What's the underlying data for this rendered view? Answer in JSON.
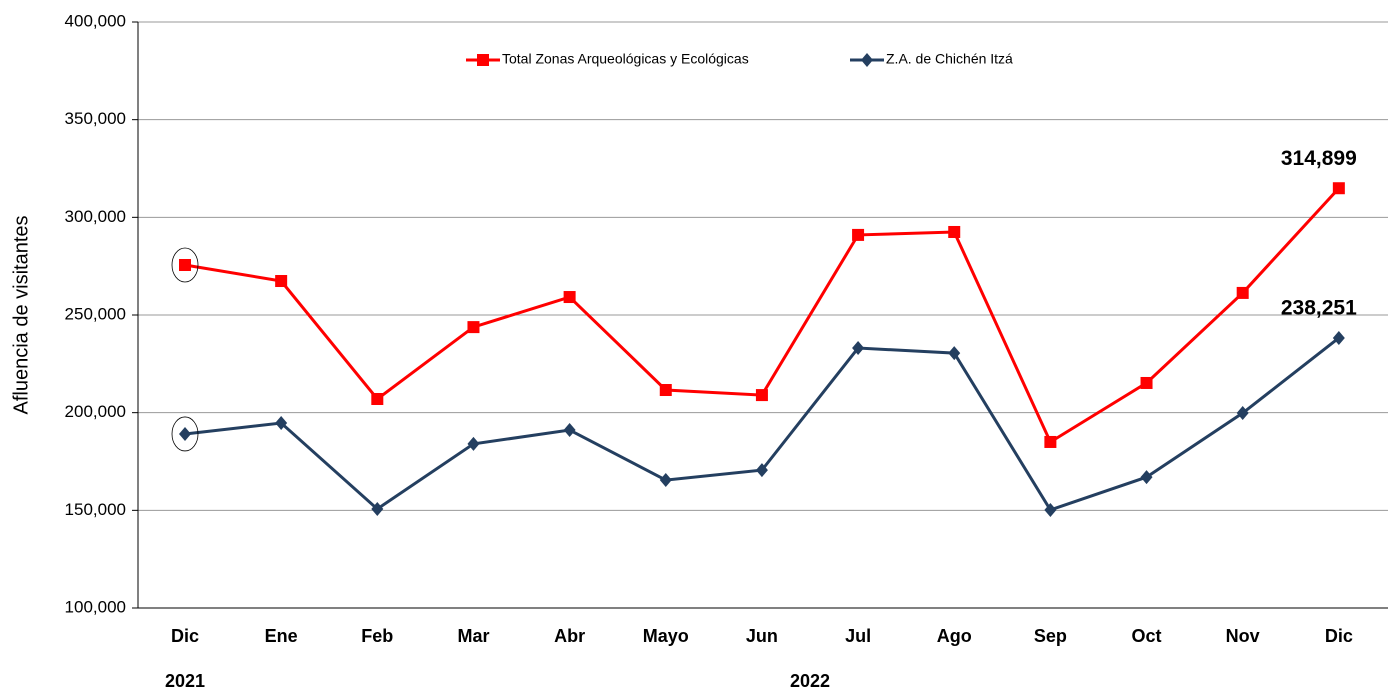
{
  "chart_data": {
    "type": "line",
    "y_label": "Afluencia de visitantes",
    "categories": [
      "Dic",
      "Ene",
      "Feb",
      "Mar",
      "Abr",
      "Mayo",
      "Jun",
      "Jul",
      "Ago",
      "Sep",
      "Oct",
      "Nov",
      "Dic"
    ],
    "year_labels": [
      "2021",
      "2022"
    ],
    "series": [
      {
        "name": "Total Zonas Arqueológicas y Ecológicas",
        "color": "#ff0000",
        "marker": "square",
        "values": [
          275600,
          267400,
          207000,
          243800,
          259200,
          211600,
          209000,
          291000,
          292500,
          185000,
          215200,
          261300,
          314899
        ],
        "value_labels": [
          null,
          null,
          null,
          null,
          null,
          null,
          null,
          null,
          null,
          null,
          null,
          null,
          "314,899"
        ]
      },
      {
        "name": "Z.A. de Chichén Itzá",
        "color": "#243f60",
        "marker": "diamond",
        "values": [
          189100,
          194700,
          150700,
          184000,
          191100,
          165500,
          170600,
          233100,
          230500,
          150200,
          167000,
          199800,
          238251
        ],
        "value_labels": [
          null,
          null,
          null,
          null,
          null,
          null,
          null,
          null,
          null,
          null,
          null,
          null,
          "238,251"
        ]
      }
    ],
    "ylim": [
      100000,
      400000
    ],
    "yticks": [
      {
        "value": 100000,
        "label": "100,000"
      },
      {
        "value": 150000,
        "label": "150,000"
      },
      {
        "value": 200000,
        "label": "200,000"
      },
      {
        "value": 250000,
        "label": "250,000"
      },
      {
        "value": 300000,
        "label": "300,000"
      },
      {
        "value": 350000,
        "label": "350,000"
      },
      {
        "value": 400000,
        "label": "400,000"
      }
    ],
    "grid": true
  }
}
